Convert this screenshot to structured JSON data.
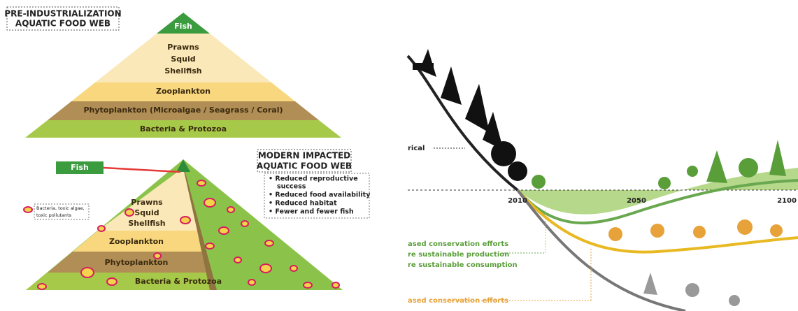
{
  "top_pyramid": {
    "title": [
      "PRE-INDUSTRIALIZATION",
      "AQUATIC FOOD WEB"
    ],
    "levels": [
      "Fish",
      "Prawns",
      "Squid",
      "Shellfish",
      "Zooplankton",
      "Phytoplankton (Microalgae / Seagrass / Coral)",
      "Bacteria & Protozoa"
    ]
  },
  "bottom_pyramid": {
    "title": [
      "MODERN IMPACTED",
      "AQUATIC FOOD WEB"
    ],
    "impacts": [
      "• Reduced reproductive",
      "success",
      "• Reduced food availability",
      "• Reduced habitat",
      "• Fewer and fewer fish"
    ],
    "fish_callout": "Fish",
    "levels": [
      "Prawns",
      "Squid",
      "Shellfish",
      "Zooplankton",
      "Phytoplankton",
      "Bacteria & Protozoa"
    ],
    "legend": [
      "Bacteria, toxic algae,",
      "toxic pollutants"
    ]
  },
  "scenario": {
    "historical_label": "rical",
    "years": [
      "2010",
      "2050",
      "2100"
    ],
    "green_labels": [
      "ased conservation efforts",
      "re sustainable production",
      "re sustainable consumption"
    ],
    "orange_label": "ased conservation efforts"
  }
}
